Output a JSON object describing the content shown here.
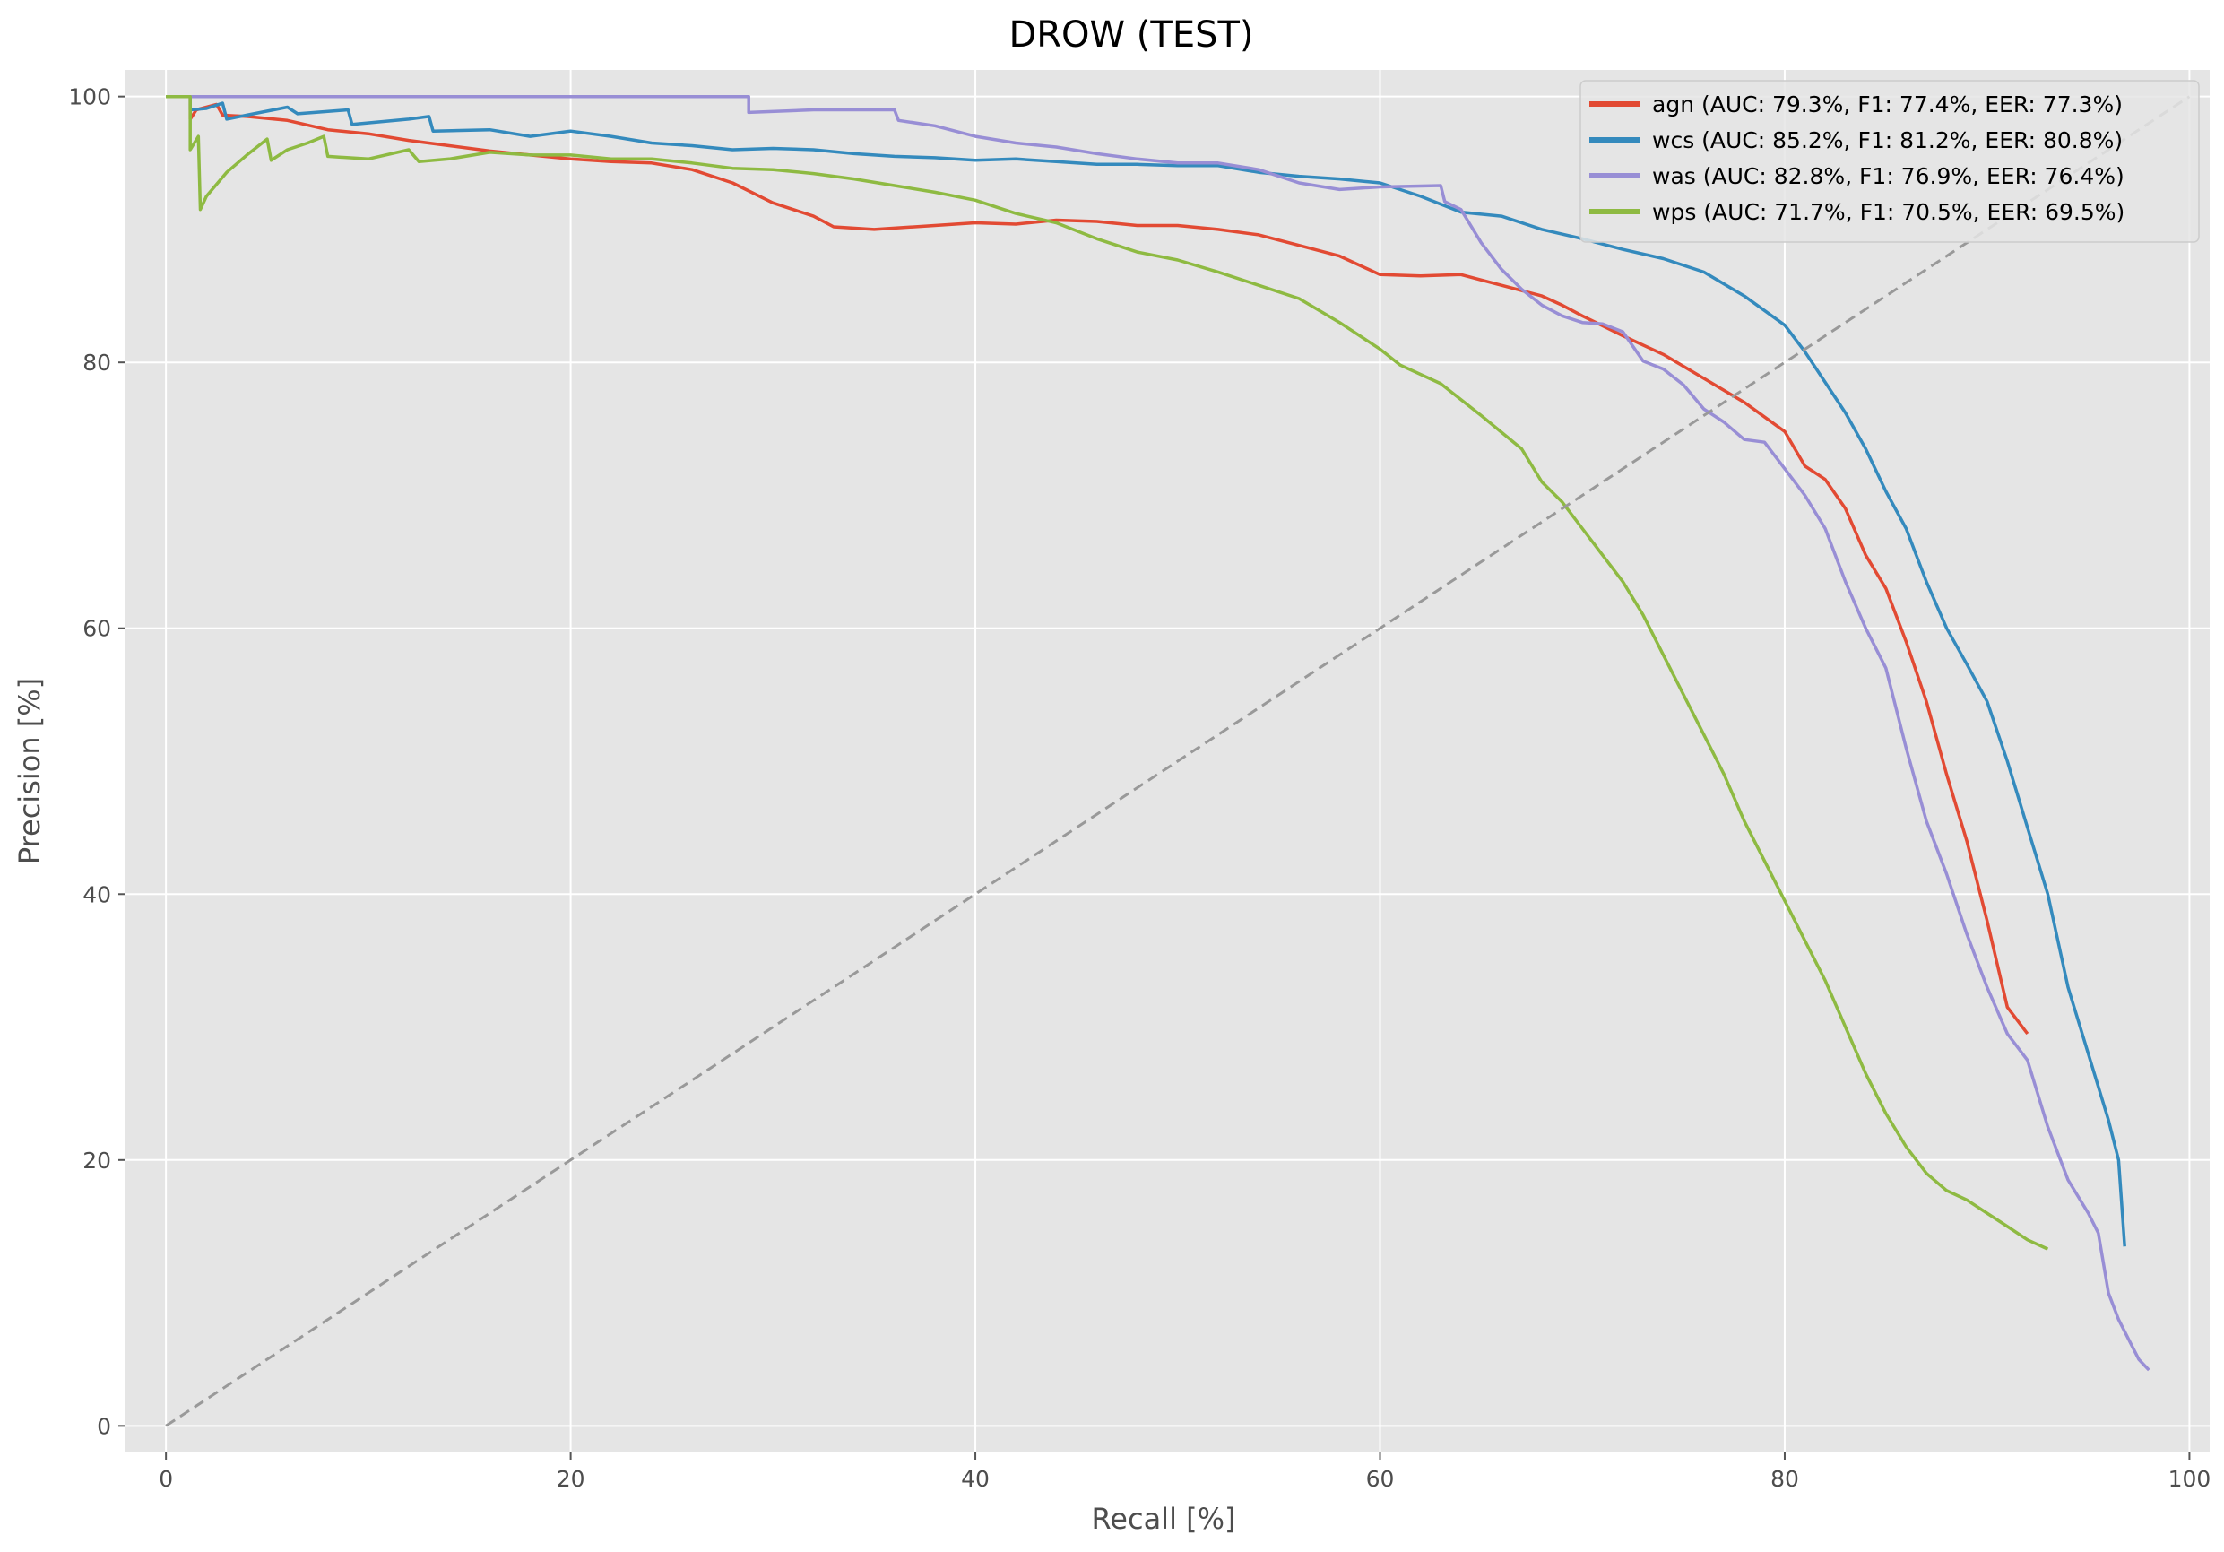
{
  "chart_data": {
    "type": "line",
    "title": "DROW (TEST)",
    "xlabel": "Recall [%]",
    "ylabel": "Precision [%]",
    "xlim": [
      -2,
      101
    ],
    "ylim": [
      -2,
      102
    ],
    "xticks": [
      0,
      20,
      40,
      60,
      80,
      100
    ],
    "yticks": [
      0,
      20,
      40,
      60,
      80,
      100
    ],
    "grid": true,
    "legend_position": "top-right",
    "background": "#e5e5e5",
    "series": [
      {
        "name": "agn (AUC: 79.3%, F1: 77.4%, EER: 77.3%)",
        "color": "#e24a33",
        "points": [
          [
            0,
            100
          ],
          [
            1.2,
            100
          ],
          [
            1.2,
            98.3
          ],
          [
            1.5,
            99
          ],
          [
            2.5,
            99.4
          ],
          [
            2.8,
            98.6
          ],
          [
            4,
            98.5
          ],
          [
            6,
            98.2
          ],
          [
            8,
            97.5
          ],
          [
            10,
            97.2
          ],
          [
            12,
            96.7
          ],
          [
            14,
            96.3
          ],
          [
            16,
            95.9
          ],
          [
            18,
            95.6
          ],
          [
            20,
            95.3
          ],
          [
            22,
            95.1
          ],
          [
            24,
            95
          ],
          [
            26,
            94.5
          ],
          [
            28,
            93.5
          ],
          [
            30,
            92
          ],
          [
            32,
            91
          ],
          [
            33,
            90.2
          ],
          [
            35,
            90
          ],
          [
            38,
            90.3
          ],
          [
            40,
            90.5
          ],
          [
            42,
            90.4
          ],
          [
            44,
            90.7
          ],
          [
            46,
            90.6
          ],
          [
            48,
            90.3
          ],
          [
            50,
            90.3
          ],
          [
            52,
            90
          ],
          [
            54,
            89.6
          ],
          [
            56,
            88.8
          ],
          [
            58,
            88
          ],
          [
            60,
            86.6
          ],
          [
            62,
            86.5
          ],
          [
            64,
            86.6
          ],
          [
            66,
            85.8
          ],
          [
            68,
            85
          ],
          [
            69,
            84.3
          ],
          [
            70,
            83.5
          ],
          [
            72,
            82
          ],
          [
            74,
            80.6
          ],
          [
            76,
            78.8
          ],
          [
            78,
            77
          ],
          [
            80,
            74.8
          ],
          [
            81,
            72.2
          ],
          [
            82,
            71.2
          ],
          [
            83,
            69
          ],
          [
            84,
            65.5
          ],
          [
            85,
            63
          ],
          [
            86,
            59
          ],
          [
            87,
            54.5
          ],
          [
            88,
            49
          ],
          [
            89,
            44
          ],
          [
            90,
            38
          ],
          [
            91,
            31.5
          ],
          [
            92,
            29.5
          ]
        ]
      },
      {
        "name": "wcs (AUC: 85.2%, F1: 81.2%, EER: 80.8%)",
        "color": "#348abd",
        "points": [
          [
            0,
            100
          ],
          [
            1.2,
            100
          ],
          [
            1.2,
            99
          ],
          [
            2,
            99.1
          ],
          [
            2.8,
            99.5
          ],
          [
            3,
            98.3
          ],
          [
            4,
            98.6
          ],
          [
            6,
            99.2
          ],
          [
            6.5,
            98.7
          ],
          [
            9,
            99
          ],
          [
            9.2,
            97.9
          ],
          [
            12,
            98.3
          ],
          [
            13,
            98.5
          ],
          [
            13.2,
            97.4
          ],
          [
            16,
            97.5
          ],
          [
            18,
            97
          ],
          [
            20,
            97.4
          ],
          [
            22,
            97
          ],
          [
            24,
            96.5
          ],
          [
            26,
            96.3
          ],
          [
            28,
            96
          ],
          [
            30,
            96.1
          ],
          [
            32,
            96
          ],
          [
            34,
            95.7
          ],
          [
            36,
            95.5
          ],
          [
            38,
            95.4
          ],
          [
            40,
            95.2
          ],
          [
            42,
            95.3
          ],
          [
            44,
            95.1
          ],
          [
            46,
            94.9
          ],
          [
            48,
            94.9
          ],
          [
            50,
            94.8
          ],
          [
            52,
            94.8
          ],
          [
            54,
            94.3
          ],
          [
            56,
            94
          ],
          [
            58,
            93.8
          ],
          [
            60,
            93.5
          ],
          [
            62,
            92.5
          ],
          [
            64,
            91.3
          ],
          [
            66,
            91
          ],
          [
            68,
            90
          ],
          [
            70,
            89.3
          ],
          [
            72,
            88.5
          ],
          [
            74,
            87.8
          ],
          [
            76,
            86.8
          ],
          [
            78,
            85
          ],
          [
            80,
            82.8
          ],
          [
            81,
            80.8
          ],
          [
            82,
            78.5
          ],
          [
            83,
            76.2
          ],
          [
            84,
            73.5
          ],
          [
            85,
            70.3
          ],
          [
            86,
            67.5
          ],
          [
            87,
            63.5
          ],
          [
            88,
            60
          ],
          [
            89,
            57.3
          ],
          [
            90,
            54.5
          ],
          [
            91,
            50
          ],
          [
            92,
            45
          ],
          [
            93,
            40
          ],
          [
            94,
            33
          ],
          [
            95,
            28
          ],
          [
            96,
            23
          ],
          [
            96.5,
            20
          ],
          [
            96.8,
            13.5
          ]
        ]
      },
      {
        "name": "was (AUC: 82.8%, F1: 76.9%, EER: 76.4%)",
        "color": "#988ed5",
        "points": [
          [
            0,
            100
          ],
          [
            28.8,
            100
          ],
          [
            28.8,
            98.8
          ],
          [
            32,
            99
          ],
          [
            36,
            99
          ],
          [
            36.2,
            98.2
          ],
          [
            38,
            97.8
          ],
          [
            40,
            97
          ],
          [
            42,
            96.5
          ],
          [
            44,
            96.2
          ],
          [
            46,
            95.7
          ],
          [
            48,
            95.3
          ],
          [
            50,
            95
          ],
          [
            52,
            95
          ],
          [
            54,
            94.5
          ],
          [
            56,
            93.5
          ],
          [
            58,
            93
          ],
          [
            60,
            93.2
          ],
          [
            63,
            93.3
          ],
          [
            63.2,
            92.1
          ],
          [
            64,
            91.5
          ],
          [
            65,
            89
          ],
          [
            66,
            87
          ],
          [
            67,
            85.5
          ],
          [
            68,
            84.3
          ],
          [
            69,
            83.5
          ],
          [
            70,
            83
          ],
          [
            71,
            82.9
          ],
          [
            72,
            82.3
          ],
          [
            73,
            80.1
          ],
          [
            74,
            79.5
          ],
          [
            75,
            78.3
          ],
          [
            76,
            76.5
          ],
          [
            77,
            75.5
          ],
          [
            78,
            74.2
          ],
          [
            79,
            74
          ],
          [
            80,
            72
          ],
          [
            81,
            70
          ],
          [
            82,
            67.5
          ],
          [
            83,
            63.5
          ],
          [
            84,
            60
          ],
          [
            85,
            57
          ],
          [
            86,
            51
          ],
          [
            87,
            45.5
          ],
          [
            88,
            41.5
          ],
          [
            89,
            37
          ],
          [
            90,
            33
          ],
          [
            91,
            29.5
          ],
          [
            92,
            27.5
          ],
          [
            93,
            22.5
          ],
          [
            94,
            18.5
          ],
          [
            95,
            16
          ],
          [
            95.5,
            14.5
          ],
          [
            96,
            10
          ],
          [
            96.5,
            8
          ],
          [
            97,
            6.5
          ],
          [
            97.5,
            5
          ],
          [
            98,
            4.2
          ]
        ]
      },
      {
        "name": "wps (AUC: 71.7%, F1: 70.5%, EER: 69.5%)",
        "color": "#8eba42",
        "points": [
          [
            0,
            100
          ],
          [
            1.2,
            100
          ],
          [
            1.2,
            96
          ],
          [
            1.6,
            97
          ],
          [
            1.7,
            91.5
          ],
          [
            2,
            92.5
          ],
          [
            3,
            94.3
          ],
          [
            4,
            95.6
          ],
          [
            5,
            96.8
          ],
          [
            5.2,
            95.2
          ],
          [
            6,
            96
          ],
          [
            7,
            96.5
          ],
          [
            7.8,
            97
          ],
          [
            8,
            95.5
          ],
          [
            10,
            95.3
          ],
          [
            12,
            96
          ],
          [
            12.5,
            95.1
          ],
          [
            14,
            95.3
          ],
          [
            16,
            95.8
          ],
          [
            18,
            95.6
          ],
          [
            20,
            95.6
          ],
          [
            22,
            95.3
          ],
          [
            24,
            95.3
          ],
          [
            26,
            95
          ],
          [
            28,
            94.6
          ],
          [
            30,
            94.5
          ],
          [
            32,
            94.2
          ],
          [
            34,
            93.8
          ],
          [
            36,
            93.3
          ],
          [
            38,
            92.8
          ],
          [
            40,
            92.2
          ],
          [
            42,
            91.2
          ],
          [
            44,
            90.5
          ],
          [
            46,
            89.3
          ],
          [
            48,
            88.3
          ],
          [
            50,
            87.7
          ],
          [
            52,
            86.8
          ],
          [
            54,
            85.8
          ],
          [
            56,
            84.8
          ],
          [
            58,
            83
          ],
          [
            60,
            81
          ],
          [
            61,
            79.8
          ],
          [
            63,
            78.4
          ],
          [
            65,
            76
          ],
          [
            67,
            73.5
          ],
          [
            68,
            71
          ],
          [
            69,
            69.5
          ],
          [
            70,
            67.5
          ],
          [
            71,
            65.5
          ],
          [
            72,
            63.5
          ],
          [
            73,
            61
          ],
          [
            74,
            58
          ],
          [
            75,
            55
          ],
          [
            76,
            52
          ],
          [
            77,
            49
          ],
          [
            78,
            45.5
          ],
          [
            79,
            42.5
          ],
          [
            80,
            39.5
          ],
          [
            81,
            36.5
          ],
          [
            82,
            33.5
          ],
          [
            83,
            30
          ],
          [
            84,
            26.5
          ],
          [
            85,
            23.5
          ],
          [
            86,
            21
          ],
          [
            87,
            19
          ],
          [
            88,
            17.7
          ],
          [
            89,
            17
          ],
          [
            90,
            16
          ],
          [
            91,
            15
          ],
          [
            92,
            14
          ],
          [
            93,
            13.3
          ]
        ]
      },
      {
        "name": "",
        "color": "#999999",
        "dashed": true,
        "points": [
          [
            0,
            0
          ],
          [
            100,
            100
          ]
        ]
      }
    ]
  }
}
